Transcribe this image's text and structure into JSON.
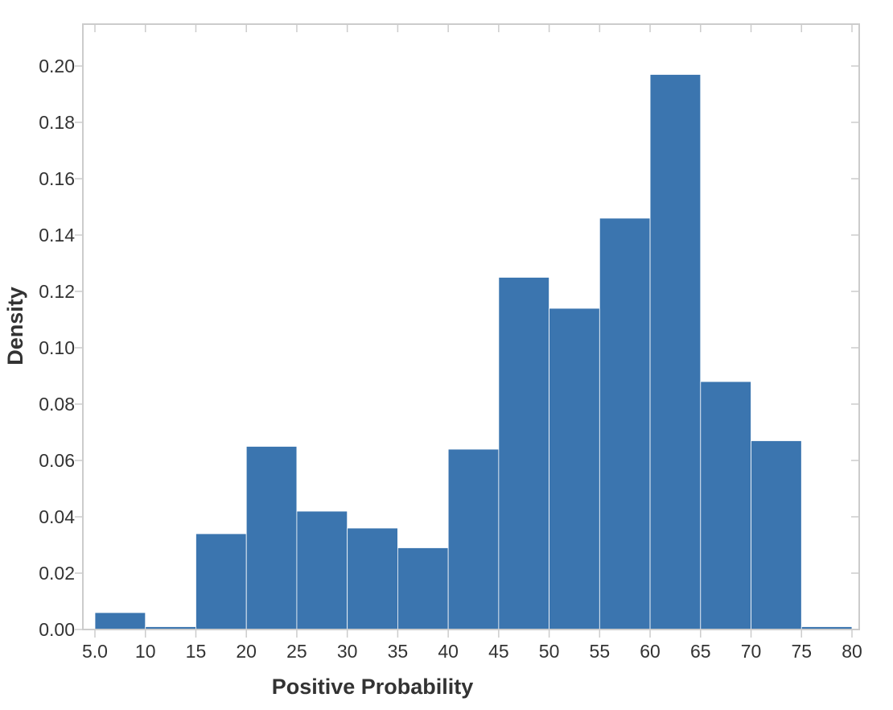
{
  "chart_data": {
    "type": "bar",
    "subtype": "histogram",
    "bin_edges": [
      5,
      10,
      15,
      20,
      25,
      30,
      35,
      40,
      45,
      50,
      55,
      60,
      65,
      70,
      75,
      80
    ],
    "values": [
      0.006,
      0.001,
      0.034,
      0.065,
      0.042,
      0.036,
      0.029,
      0.064,
      0.125,
      0.114,
      0.146,
      0.197,
      0.088,
      0.067,
      0.001
    ],
    "xlabel": "Positive Probability",
    "ylabel": "Density",
    "xlim": [
      5,
      80
    ],
    "ylim": [
      0,
      0.215
    ],
    "x_ticks": [
      "5.0",
      "10",
      "15",
      "20",
      "25",
      "30",
      "35",
      "40",
      "45",
      "50",
      "55",
      "60",
      "65",
      "70",
      "75",
      "80"
    ],
    "x_tick_values": [
      5,
      10,
      15,
      20,
      25,
      30,
      35,
      40,
      45,
      50,
      55,
      60,
      65,
      70,
      75,
      80
    ],
    "y_ticks": [
      "0.00",
      "0.02",
      "0.04",
      "0.06",
      "0.08",
      "0.10",
      "0.12",
      "0.14",
      "0.16",
      "0.18",
      "0.20"
    ],
    "y_tick_values": [
      0,
      0.02,
      0.04,
      0.06,
      0.08,
      0.1,
      0.12,
      0.14,
      0.16,
      0.18,
      0.2
    ],
    "grid": false,
    "bar_color": "#3b75af",
    "frame_color": "#cccccc",
    "text_color": "#333333"
  }
}
